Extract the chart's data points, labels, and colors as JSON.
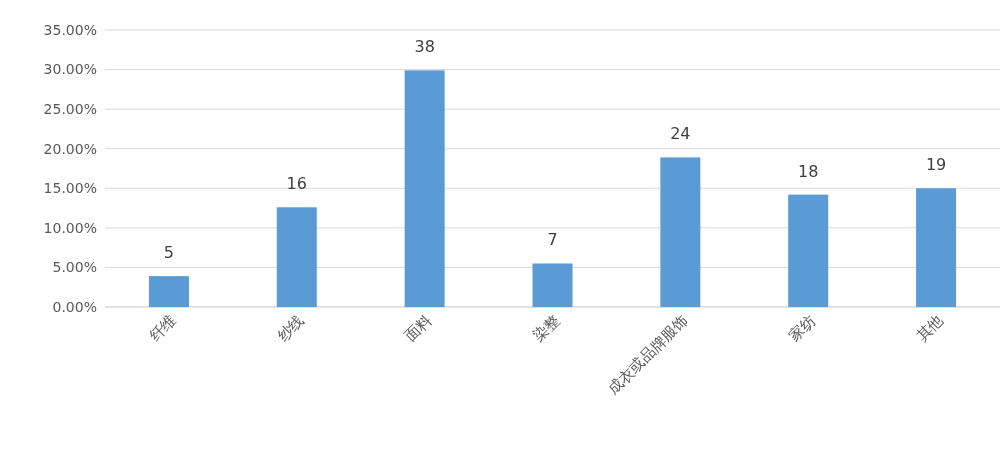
{
  "chart_data": {
    "type": "bar",
    "categories": [
      "纤维",
      "纱线",
      "面料",
      "染整",
      "成衣或品牌服饰",
      "家纺",
      "其他"
    ],
    "values": [
      3.9,
      12.6,
      29.9,
      5.5,
      18.9,
      14.2,
      15.0
    ],
    "annotations": [
      {
        "text": "5",
        "x": "纤维",
        "y": 3.9
      },
      {
        "text": "16",
        "x": "纱线",
        "y": 12.6
      },
      {
        "text": "38",
        "x": "面料",
        "y": 29.9
      },
      {
        "text": "7",
        "x": "染整",
        "y": 5.5
      },
      {
        "text": "24",
        "x": "成衣或品牌服饰",
        "y": 18.9
      },
      {
        "text": "18",
        "x": "家纺",
        "y": 14.2
      },
      {
        "text": "19",
        "x": "其他",
        "y": 15.0
      }
    ],
    "color": "#5b9bd5",
    "ylim": [
      0,
      35
    ],
    "yticks": [
      {
        "value": 0,
        "label": "0.00%"
      },
      {
        "value": 5,
        "label": "5.00%"
      },
      {
        "value": 10,
        "label": "10.00%"
      },
      {
        "value": 15,
        "label": "15.00%"
      },
      {
        "value": 20,
        "label": "20.00%"
      },
      {
        "value": 25,
        "label": "25.00%"
      },
      {
        "value": 30,
        "label": "30.00%"
      },
      {
        "value": 35,
        "label": "35.00%"
      }
    ],
    "grid": "y"
  }
}
